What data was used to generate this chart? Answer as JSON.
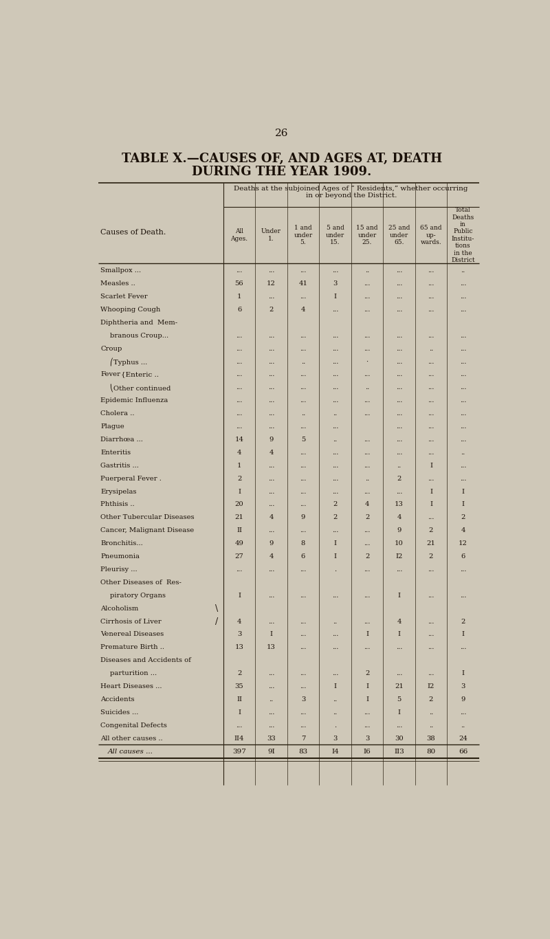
{
  "page_number": "26",
  "title_line1": "TABLE X.—CAUSES OF, AND AGES AT, DEATH",
  "title_line2": "DURING THE YEAR 1909.",
  "subtitle_line1": "Deaths at the subjoined Ages of “ Residents,” whether occurring",
  "subtitle_line2": "in or beyond the District.",
  "col_headers": [
    "All\nAges.",
    "Under\n1.",
    "1 and\nunder\n5.",
    "5 and\nunder\n15.",
    "15 and\nunder\n25.",
    "25 and\nunder\n65.",
    "65 and\nup-\nwards.",
    "Total\nDeaths\nin\nPublic\nInstitu-\ntions\nin the\nDistrict"
  ],
  "cause_col_header": "Causes of Death.",
  "rows": [
    {
      "cause": "Smallpox ...",
      "cont": false,
      "indent": false,
      "fever": 0,
      "vals": [
        "...",
        "...",
        "...",
        "...",
        "..",
        "...",
        "...",
        ".."
      ]
    },
    {
      "cause": "Measles ..",
      "cont": false,
      "indent": false,
      "fever": 0,
      "vals": [
        "56",
        "12",
        "41",
        "3",
        "...",
        "...",
        "...",
        "..."
      ]
    },
    {
      "cause": "Scarlet Fever",
      "cont": false,
      "indent": false,
      "fever": 0,
      "vals": [
        "1",
        "...",
        "...",
        "I",
        "...",
        "...",
        "...",
        "..."
      ]
    },
    {
      "cause": "Whooping Cough",
      "cont": false,
      "indent": false,
      "fever": 0,
      "vals": [
        "6",
        "2",
        "4",
        "...",
        "...",
        "...",
        "...",
        "..."
      ]
    },
    {
      "cause": "Diphtheria and  Mem-",
      "cont": true,
      "indent": false,
      "fever": 0,
      "vals": [
        null,
        null,
        null,
        null,
        null,
        null,
        null,
        null
      ]
    },
    {
      "cause": "branous Croup...",
      "cont": false,
      "indent": true,
      "fever": 0,
      "vals": [
        "...",
        "...",
        "...",
        "...",
        "...",
        "...",
        "...",
        "..."
      ]
    },
    {
      "cause": "Croup",
      "cont": false,
      "indent": false,
      "fever": 0,
      "vals": [
        "...",
        "...",
        "...",
        "...",
        "...",
        "...",
        "..",
        "..."
      ]
    },
    {
      "cause": "Typhus ...",
      "cont": false,
      "indent": false,
      "fever": 1,
      "vals": [
        "...",
        "...",
        "..",
        "...",
        "·",
        "...",
        "...",
        "..."
      ]
    },
    {
      "cause": "Enteric ..",
      "cont": false,
      "indent": false,
      "fever": 2,
      "vals": [
        "...",
        "...",
        "...",
        "...",
        "...",
        "...",
        "...",
        "..."
      ]
    },
    {
      "cause": "Other continued",
      "cont": false,
      "indent": false,
      "fever": 3,
      "vals": [
        "...",
        "...",
        "...",
        "...",
        "..",
        "...",
        "...",
        "..."
      ]
    },
    {
      "cause": "Epidemic Influenza",
      "cont": false,
      "indent": false,
      "fever": 0,
      "vals": [
        "...",
        "...",
        "...",
        "...",
        "...",
        "...",
        "...",
        "..."
      ]
    },
    {
      "cause": "Cholera ..",
      "cont": false,
      "indent": false,
      "fever": 0,
      "vals": [
        "...",
        "...",
        "..",
        "..",
        "...",
        "...",
        "...",
        "..."
      ]
    },
    {
      "cause": "Plague",
      "cont": false,
      "indent": false,
      "fever": 0,
      "vals": [
        "...",
        "...",
        "...",
        "...",
        "",
        "...",
        "...",
        "..."
      ]
    },
    {
      "cause": "Diarrhœa ...",
      "cont": false,
      "indent": false,
      "fever": 0,
      "vals": [
        "14",
        "9",
        "5",
        "..",
        "...",
        "...",
        "...",
        "..."
      ]
    },
    {
      "cause": "Enteritis",
      "cont": false,
      "indent": false,
      "fever": 0,
      "vals": [
        "4",
        "4",
        "...",
        "...",
        "...",
        "...",
        "...",
        ".."
      ]
    },
    {
      "cause": "Gastritis ...",
      "cont": false,
      "indent": false,
      "fever": 0,
      "vals": [
        "1",
        "...",
        "...",
        "...",
        "...",
        "..",
        "I",
        "..."
      ]
    },
    {
      "cause": "Puerperal Fever .",
      "cont": false,
      "indent": false,
      "fever": 0,
      "vals": [
        "2",
        "...",
        "...",
        "...",
        "..",
        "2",
        "...",
        "..."
      ]
    },
    {
      "cause": "Erysipelas",
      "cont": false,
      "indent": false,
      "fever": 0,
      "vals": [
        "I",
        "...",
        "...",
        "...",
        "...",
        "...",
        "I",
        "I"
      ]
    },
    {
      "cause": "Phthisis ..",
      "cont": false,
      "indent": false,
      "fever": 0,
      "vals": [
        "20",
        "...",
        "...",
        "2",
        "4",
        "13",
        "I",
        "I"
      ]
    },
    {
      "cause": "Other Tubercular Diseases",
      "cont": false,
      "indent": false,
      "fever": 0,
      "vals": [
        "21",
        "4",
        "9",
        "2",
        "2",
        "4",
        "...",
        "2"
      ]
    },
    {
      "cause": "Cancer, Malignant Disease",
      "cont": false,
      "indent": false,
      "fever": 0,
      "vals": [
        "II",
        "...",
        "...",
        "...",
        "...",
        "9",
        "2",
        "4"
      ]
    },
    {
      "cause": "Bronchitis...",
      "cont": false,
      "indent": false,
      "fever": 0,
      "vals": [
        "49",
        "9",
        "8",
        "I",
        "...",
        "10",
        "21",
        "12"
      ]
    },
    {
      "cause": "Pneumonia",
      "cont": false,
      "indent": false,
      "fever": 0,
      "vals": [
        "27",
        "4",
        "6",
        "I",
        "2",
        "I2",
        "2",
        "6"
      ]
    },
    {
      "cause": "Pleurisy ...",
      "cont": false,
      "indent": false,
      "fever": 0,
      "vals": [
        "...",
        "...",
        "...",
        ".",
        "...",
        "...",
        "...",
        "..."
      ]
    },
    {
      "cause": "Other Diseases of  Res-",
      "cont": true,
      "indent": false,
      "fever": 0,
      "vals": [
        null,
        null,
        null,
        null,
        null,
        null,
        null,
        null
      ]
    },
    {
      "cause": "piratory Organs",
      "cont": false,
      "indent": true,
      "fever": 0,
      "vals": [
        "I",
        "...",
        "...",
        "...",
        "...",
        "I",
        "...",
        "..."
      ]
    },
    {
      "cause": "Alcoholism",
      "cont": true,
      "indent": false,
      "fever": 0,
      "bracket_top": true,
      "vals": [
        null,
        null,
        null,
        null,
        null,
        null,
        null,
        null
      ]
    },
    {
      "cause": "Cirrhosis of Liver",
      "cont": false,
      "indent": false,
      "fever": 0,
      "bracket_bot": true,
      "vals": [
        "4",
        "...",
        "...",
        "..",
        "...",
        "4",
        "...",
        "2"
      ]
    },
    {
      "cause": "Venereal Diseases",
      "cont": false,
      "indent": false,
      "fever": 0,
      "vals": [
        "3",
        "I",
        "...",
        "...",
        "I",
        "I",
        "...",
        "I"
      ]
    },
    {
      "cause": "Premature Birth ..",
      "cont": false,
      "indent": false,
      "fever": 0,
      "vals": [
        "13",
        "13",
        "...",
        "...",
        "...",
        "...",
        "...",
        "..."
      ]
    },
    {
      "cause": "Diseases and Accidents of",
      "cont": true,
      "indent": false,
      "fever": 0,
      "vals": [
        null,
        null,
        null,
        null,
        null,
        null,
        null,
        null
      ]
    },
    {
      "cause": "parturition ...",
      "cont": false,
      "indent": true,
      "fever": 0,
      "vals": [
        "2",
        "...",
        "...",
        "...",
        "2",
        "...",
        "...",
        "I"
      ]
    },
    {
      "cause": "Heart Diseases ...",
      "cont": false,
      "indent": false,
      "fever": 0,
      "vals": [
        "35",
        "...",
        "...",
        "I",
        "I",
        "21",
        "I2",
        "3"
      ]
    },
    {
      "cause": "Accidents",
      "cont": false,
      "indent": false,
      "fever": 0,
      "vals": [
        "II",
        "..",
        "3",
        "..",
        "I",
        "5",
        "2",
        "9"
      ]
    },
    {
      "cause": "Suicides ...",
      "cont": false,
      "indent": false,
      "fever": 0,
      "vals": [
        "I",
        "...",
        "...",
        "..",
        "...",
        "I",
        "..",
        "..."
      ]
    },
    {
      "cause": "Congenital Defects",
      "cont": false,
      "indent": false,
      "fever": 0,
      "vals": [
        "...",
        "...",
        "...",
        ".",
        "...",
        "...",
        "..",
        ".."
      ]
    },
    {
      "cause": "All other causes ..",
      "cont": false,
      "indent": false,
      "fever": 0,
      "vals": [
        "II4",
        "33",
        "7",
        "3",
        "3",
        "30",
        "38",
        "24"
      ]
    }
  ],
  "total_row": {
    "cause": "All causes ...",
    "vals": [
      "397",
      "9I",
      "83",
      "I4",
      "I6",
      "II3",
      "80",
      "66"
    ]
  },
  "bg_color": "#cfc8b8",
  "table_bg": "#cfc8b8",
  "text_color": "#1a1008",
  "line_color": "#2a2010"
}
